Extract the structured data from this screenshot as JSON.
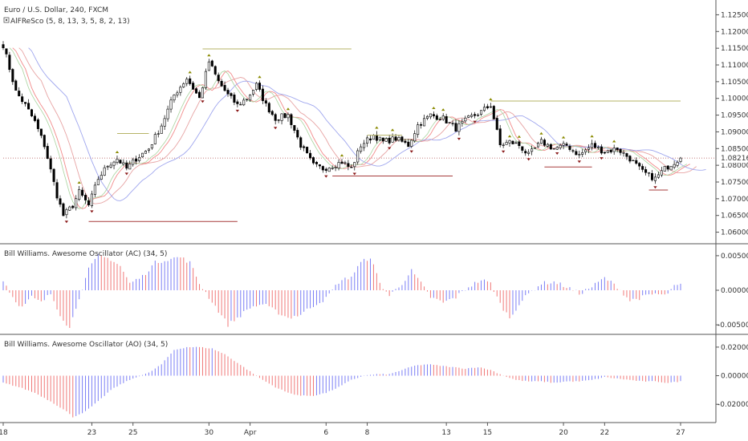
{
  "header": {
    "title": "Euro / U.S. Dollar, 240, FXCM",
    "indicator_icon": "eye-icon",
    "indicator": "AlFReSco (5, 8, 13, 3, 5, 8, 2, 13)"
  },
  "colors": {
    "bull_candle": "#ffffff",
    "bear_candle": "#000000",
    "up_bar": "#7b7ef5",
    "down_bar": "#f07878",
    "up_fractal": "#8a8a00",
    "down_fractal": "#8b1a1a",
    "ma_fast": "#f28b8b",
    "ma_mid": "#e7a3a3",
    "ma_slow": "#9fa6ee",
    "ma_green": "#a9d39e"
  },
  "chart_data": [
    {
      "type": "candlestick",
      "name": "price",
      "title": "Euro / U.S. Dollar, 240, FXCM",
      "y_ticks": [
        "1.12500",
        "1.12000",
        "1.11500",
        "1.11000",
        "1.10500",
        "1.10000",
        "1.09500",
        "1.09000",
        "1.08500",
        "1.08000",
        "1.07500",
        "1.07000",
        "1.06500",
        "1.06000"
      ],
      "ylim": [
        1.0575,
        1.1275
      ],
      "last_price": "1.08216",
      "last_price_value": 1.08216,
      "x_ticks": [
        {
          "label": "18",
          "index": 0
        },
        {
          "label": "23",
          "index": 28
        },
        {
          "label": "25",
          "index": 41
        },
        {
          "label": "30",
          "index": 65
        },
        {
          "label": "Apr",
          "index": 78
        },
        {
          "label": "6",
          "index": 102
        },
        {
          "label": "8",
          "index": 115
        },
        {
          "label": "13",
          "index": 140
        },
        {
          "label": "15",
          "index": 153
        },
        {
          "label": "20",
          "index": 177
        },
        {
          "label": "22",
          "index": 190
        },
        {
          "label": "27",
          "index": 214
        }
      ],
      "n_bars": 215,
      "close_anchors": [
        [
          0,
          1.116
        ],
        [
          4,
          1.102
        ],
        [
          7,
          1.098
        ],
        [
          10,
          1.093
        ],
        [
          13,
          1.086
        ],
        [
          17,
          1.071
        ],
        [
          19,
          1.065
        ],
        [
          22,
          1.068
        ],
        [
          24,
          1.072
        ],
        [
          27,
          1.068
        ],
        [
          30,
          1.076
        ],
        [
          33,
          1.08
        ],
        [
          36,
          1.082
        ],
        [
          39,
          1.079
        ],
        [
          42,
          1.082
        ],
        [
          46,
          1.085
        ],
        [
          50,
          1.092
        ],
        [
          54,
          1.101
        ],
        [
          58,
          1.106
        ],
        [
          62,
          1.1
        ],
        [
          65,
          1.111
        ],
        [
          68,
          1.105
        ],
        [
          71,
          1.101
        ],
        [
          74,
          1.098
        ],
        [
          77,
          1.1
        ],
        [
          80,
          1.104
        ],
        [
          83,
          1.098
        ],
        [
          86,
          1.094
        ],
        [
          90,
          1.095
        ],
        [
          94,
          1.086
        ],
        [
          98,
          1.08
        ],
        [
          101,
          1.079
        ],
        [
          104,
          1.08
        ],
        [
          107,
          1.081
        ],
        [
          110,
          1.079
        ],
        [
          113,
          1.086
        ],
        [
          117,
          1.089
        ],
        [
          120,
          1.087
        ],
        [
          124,
          1.088
        ],
        [
          128,
          1.086
        ],
        [
          131,
          1.092
        ],
        [
          135,
          1.095
        ],
        [
          139,
          1.094
        ],
        [
          143,
          1.091
        ],
        [
          147,
          1.094
        ],
        [
          151,
          1.096
        ],
        [
          154,
          1.098
        ],
        [
          157,
          1.086
        ],
        [
          160,
          1.087
        ],
        [
          163,
          1.086
        ],
        [
          166,
          1.083
        ],
        [
          170,
          1.087
        ],
        [
          174,
          1.085
        ],
        [
          178,
          1.086
        ],
        [
          182,
          1.083
        ],
        [
          186,
          1.086
        ],
        [
          190,
          1.084
        ],
        [
          194,
          1.085
        ],
        [
          198,
          1.082
        ],
        [
          202,
          1.078
        ],
        [
          206,
          1.076
        ],
        [
          209,
          1.079
        ],
        [
          212,
          1.081
        ],
        [
          214,
          1.0822
        ]
      ],
      "moving_averages": [
        {
          "key": "ma_fast",
          "period": 5,
          "shift": 3
        },
        {
          "key": "ma_mid",
          "period": 8,
          "shift": 5
        },
        {
          "key": "ma_slow",
          "period": 13,
          "shift": 8
        }
      ],
      "fractal_levels": [
        {
          "value": 1.1148,
          "from": 63,
          "to": 110,
          "kind": "up"
        },
        {
          "value": 1.0992,
          "from": 154,
          "to": 214,
          "kind": "up"
        },
        {
          "value": 1.089,
          "from": 115,
          "to": 126,
          "kind": "up"
        },
        {
          "value": 1.0895,
          "from": 36,
          "to": 46,
          "kind": "up"
        },
        {
          "value": 1.0632,
          "from": 27,
          "to": 74,
          "kind": "down"
        },
        {
          "value": 1.0768,
          "from": 104,
          "to": 142,
          "kind": "down"
        },
        {
          "value": 1.0795,
          "from": 171,
          "to": 186,
          "kind": "down"
        },
        {
          "value": 1.0726,
          "from": 204,
          "to": 210,
          "kind": "down"
        }
      ]
    },
    {
      "type": "bar",
      "name": "ac",
      "title": "Bill Williams. Awesome Oscillator (AC) (34, 5)",
      "y_ticks": [
        "0.00500",
        "0.00000",
        "-0.00500"
      ],
      "ylim": [
        -0.0058,
        0.0058
      ],
      "value_anchors": [
        [
          0,
          0.0015
        ],
        [
          3,
          -0.001
        ],
        [
          6,
          -0.0025
        ],
        [
          9,
          -0.001
        ],
        [
          12,
          -0.0018
        ],
        [
          15,
          -0.0005
        ],
        [
          18,
          -0.0035
        ],
        [
          21,
          -0.0055
        ],
        [
          24,
          -0.001
        ],
        [
          27,
          0.003
        ],
        [
          30,
          0.005
        ],
        [
          34,
          0.0045
        ],
        [
          37,
          0.0035
        ],
        [
          40,
          0.001
        ],
        [
          44,
          0.002
        ],
        [
          48,
          0.004
        ],
        [
          52,
          0.0045
        ],
        [
          56,
          0.0048
        ],
        [
          59,
          0.004
        ],
        [
          62,
          0.001
        ],
        [
          65,
          -0.001
        ],
        [
          68,
          -0.003
        ],
        [
          71,
          -0.005
        ],
        [
          74,
          -0.004
        ],
        [
          78,
          -0.0025
        ],
        [
          82,
          -0.002
        ],
        [
          86,
          -0.003
        ],
        [
          90,
          -0.004
        ],
        [
          94,
          -0.0035
        ],
        [
          98,
          -0.0022
        ],
        [
          102,
          -0.0012
        ],
        [
          106,
          0.0012
        ],
        [
          110,
          0.002
        ],
        [
          113,
          0.004
        ],
        [
          116,
          0.0048
        ],
        [
          119,
          0.001
        ],
        [
          122,
          -0.0008
        ],
        [
          126,
          0.001
        ],
        [
          129,
          0.0028
        ],
        [
          132,
          0.001
        ],
        [
          135,
          -0.001
        ],
        [
          139,
          -0.0018
        ],
        [
          143,
          -0.001
        ],
        [
          147,
          0.0005
        ],
        [
          151,
          0.0015
        ],
        [
          154,
          0.001
        ],
        [
          157,
          -0.002
        ],
        [
          160,
          -0.004
        ],
        [
          163,
          -0.002
        ],
        [
          166,
          -0.0005
        ],
        [
          170,
          0.001
        ],
        [
          174,
          0.0012
        ],
        [
          178,
          0.0005
        ],
        [
          182,
          -0.0005
        ],
        [
          186,
          0.0005
        ],
        [
          190,
          0.0018
        ],
        [
          194,
          0.0005
        ],
        [
          198,
          -0.0015
        ],
        [
          202,
          -0.001
        ],
        [
          206,
          -0.0005
        ],
        [
          209,
          -0.0008
        ],
        [
          212,
          0.0005
        ],
        [
          214,
          0.0008
        ]
      ]
    },
    {
      "type": "bar",
      "name": "ao",
      "title": "Bill Williams. Awesome Oscillator (AO) (34, 5)",
      "y_ticks": [
        "0.02000",
        "0.00000",
        "-0.02000"
      ],
      "ylim": [
        -0.03,
        0.025
      ],
      "value_anchors": [
        [
          0,
          -0.005
        ],
        [
          5,
          -0.008
        ],
        [
          10,
          -0.012
        ],
        [
          15,
          -0.018
        ],
        [
          20,
          -0.025
        ],
        [
          22,
          -0.029
        ],
        [
          26,
          -0.025
        ],
        [
          30,
          -0.018
        ],
        [
          34,
          -0.01
        ],
        [
          38,
          -0.005
        ],
        [
          42,
          -0.001
        ],
        [
          46,
          0.002
        ],
        [
          50,
          0.008
        ],
        [
          54,
          0.018
        ],
        [
          58,
          0.02
        ],
        [
          62,
          0.02
        ],
        [
          66,
          0.019
        ],
        [
          70,
          0.015
        ],
        [
          74,
          0.009
        ],
        [
          78,
          0.003
        ],
        [
          82,
          -0.003
        ],
        [
          86,
          -0.008
        ],
        [
          90,
          -0.012
        ],
        [
          94,
          -0.014
        ],
        [
          98,
          -0.014
        ],
        [
          102,
          -0.012
        ],
        [
          106,
          -0.008
        ],
        [
          110,
          -0.003
        ],
        [
          114,
          0.0
        ],
        [
          118,
          0.001
        ],
        [
          122,
          0.001
        ],
        [
          126,
          0.004
        ],
        [
          130,
          0.007
        ],
        [
          134,
          0.008
        ],
        [
          138,
          0.007
        ],
        [
          142,
          0.006
        ],
        [
          146,
          0.005
        ],
        [
          150,
          0.006
        ],
        [
          154,
          0.004
        ],
        [
          158,
          0.0
        ],
        [
          162,
          -0.003
        ],
        [
          166,
          -0.004
        ],
        [
          170,
          -0.004
        ],
        [
          174,
          -0.005
        ],
        [
          178,
          -0.004
        ],
        [
          182,
          -0.004
        ],
        [
          186,
          -0.003
        ],
        [
          190,
          -0.001
        ],
        [
          194,
          -0.002
        ],
        [
          198,
          -0.003
        ],
        [
          202,
          -0.004
        ],
        [
          206,
          -0.004
        ],
        [
          210,
          -0.005
        ],
        [
          214,
          -0.004
        ]
      ]
    }
  ]
}
